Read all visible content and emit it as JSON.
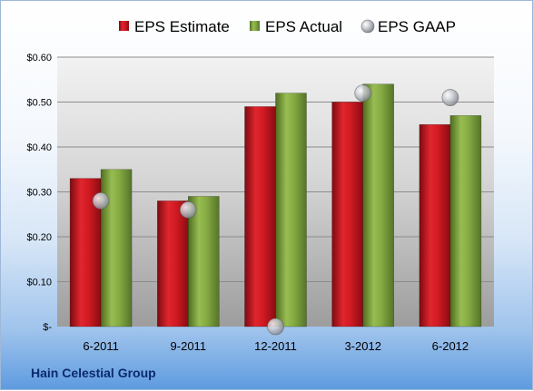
{
  "chart_data": {
    "type": "bar",
    "categories": [
      "6-2011",
      "9-2011",
      "12-2011",
      "3-2012",
      "6-2012"
    ],
    "series": [
      {
        "name": "EPS Estimate",
        "kind": "bar",
        "color": "#c8141e",
        "values": [
          0.33,
          0.28,
          0.49,
          0.5,
          0.45
        ]
      },
      {
        "name": "EPS Actual",
        "kind": "bar",
        "color": "#7a9e3a",
        "values": [
          0.35,
          0.29,
          0.52,
          0.54,
          0.47
        ]
      },
      {
        "name": "EPS GAAP",
        "kind": "marker",
        "color": "#b9bcc2",
        "values": [
          0.28,
          0.26,
          0.0,
          0.52,
          0.51
        ]
      }
    ],
    "ylim": [
      0,
      0.6
    ],
    "yticks": [
      0,
      0.1,
      0.2,
      0.3,
      0.4,
      0.5,
      0.6
    ],
    "ytick_labels": [
      "$-",
      "$0.10",
      "$0.20",
      "$0.30",
      "$0.40",
      "$0.50",
      "$0.60"
    ],
    "grid": true,
    "legend_position": "top",
    "company": "Hain Celestial Group"
  }
}
